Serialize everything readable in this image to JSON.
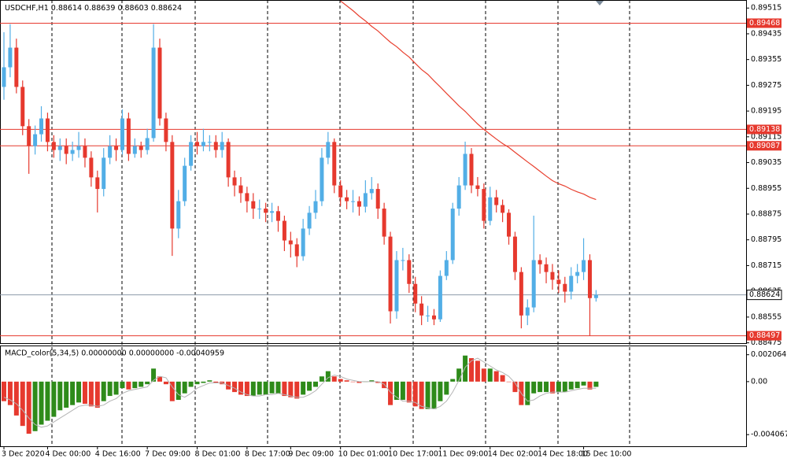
{
  "chart_data": [
    {
      "type": "candlestick",
      "title": "USDCHF,H1",
      "categories": [
        "3 Dec 2020",
        null,
        null,
        null,
        null,
        null,
        null,
        "4 Dec 00:00",
        null,
        null,
        null,
        null,
        null,
        null,
        null,
        "4 Dec 16:00",
        null,
        null,
        null,
        null,
        null,
        null,
        null,
        "7 Dec 09:00",
        null,
        null,
        null,
        null,
        null,
        null,
        null,
        "8 Dec 01:00",
        null,
        null,
        null,
        null,
        null,
        null,
        null,
        "8 Dec 17:00",
        null,
        null,
        null,
        null,
        null,
        null,
        "9 Dec 09:00",
        null,
        null,
        null,
        null,
        null,
        null,
        null,
        "10 Dec 01:00",
        null,
        null,
        null,
        null,
        null,
        null,
        null,
        "10 Dec 17:00",
        null,
        null,
        null,
        null,
        null,
        null,
        null,
        "11 Dec 09:00",
        null,
        null,
        null,
        null,
        null,
        null,
        null,
        "14 Dec 02:00",
        null,
        null,
        null,
        null,
        null,
        null,
        null,
        "14 Dec 18:00",
        null,
        null,
        null,
        null,
        null,
        null,
        "15 Dec 10:00",
        null,
        null
      ],
      "open": [
        0.8927,
        0.89331,
        0.89392,
        0.8927,
        0.89148,
        0.89086,
        0.89123,
        0.89172,
        0.89099,
        0.89074,
        0.89086,
        0.89062,
        0.89074,
        0.89086,
        0.8905,
        0.88989,
        0.88953,
        0.8905,
        0.89086,
        0.89074,
        0.89172,
        0.89062,
        0.89086,
        0.89074,
        0.89111,
        0.89392,
        0.89172,
        0.89099,
        0.8883,
        0.88915,
        0.89025,
        0.89099,
        0.89086,
        0.89099,
        0.89099,
        0.89074,
        0.89099,
        0.88989,
        0.88964,
        0.8894,
        0.88915,
        0.88892,
        0.88892,
        0.88879,
        0.88884,
        0.88854,
        0.88793,
        0.88781,
        0.88744,
        0.8883,
        0.88879,
        0.88915,
        0.8905,
        0.89099,
        0.88964,
        0.88927,
        0.88915,
        0.88915,
        0.88898,
        0.8894,
        0.88953,
        0.88892,
        0.88805,
        0.88573,
        0.88732,
        0.88732,
        0.88658,
        0.88597,
        0.8856,
        0.8856,
        0.88548,
        0.88683,
        0.88732,
        0.88892,
        0.88964,
        0.89062,
        0.88964,
        0.88953,
        0.88854,
        0.88927,
        0.88903,
        0.88879,
        0.88805,
        0.88695,
        0.8856,
        0.88585,
        0.88732,
        0.88719,
        0.88695,
        0.88671,
        0.88658,
        0.88634,
        0.88683,
        0.88695,
        0.88732,
        0.88614
      ],
      "high": [
        0.8944,
        0.89465,
        0.8942,
        0.8929,
        0.8917,
        0.8915,
        0.8921,
        0.8919,
        0.8912,
        0.8911,
        0.8911,
        0.891,
        0.8913,
        0.8911,
        0.8907,
        0.8901,
        0.8908,
        0.8912,
        0.8911,
        0.892,
        0.8919,
        0.8911,
        0.891,
        0.8914,
        0.89465,
        0.8942,
        0.8919,
        0.8912,
        0.8895,
        0.8905,
        0.8912,
        0.8913,
        0.8914,
        0.8912,
        0.8912,
        0.8913,
        0.8911,
        0.8901,
        0.8899,
        0.8896,
        0.8894,
        0.8892,
        0.8891,
        0.8891,
        0.889,
        0.8887,
        0.8882,
        0.888,
        0.8886,
        0.889,
        0.8895,
        0.8908,
        0.8913,
        0.8911,
        0.8898,
        0.8895,
        0.8895,
        0.8893,
        0.8898,
        0.8899,
        0.8897,
        0.8891,
        0.8882,
        0.8876,
        0.8877,
        0.8875,
        0.8868,
        0.8862,
        0.8859,
        0.8858,
        0.887,
        0.8876,
        0.8891,
        0.8899,
        0.891,
        0.8908,
        0.8899,
        0.8897,
        0.8896,
        0.8895,
        0.8892,
        0.8889,
        0.8882,
        0.8871,
        0.8861,
        0.8887,
        0.8875,
        0.8874,
        0.8872,
        0.887,
        0.8868,
        0.8871,
        0.8872,
        0.888,
        0.8875,
        0.88639
      ],
      "low": [
        0.8923,
        0.893,
        0.8925,
        0.8912,
        0.89,
        0.8906,
        0.891,
        0.8907,
        0.8905,
        0.8904,
        0.8903,
        0.8904,
        0.8905,
        0.8902,
        0.8896,
        0.8888,
        0.8893,
        0.8903,
        0.8904,
        0.8906,
        0.8904,
        0.8905,
        0.8905,
        0.8906,
        0.891,
        0.8915,
        0.8907,
        0.88745,
        0.888,
        0.889,
        0.8901,
        0.8906,
        0.8907,
        0.8907,
        0.8905,
        0.8905,
        0.8896,
        0.8893,
        0.8891,
        0.8888,
        0.8886,
        0.8886,
        0.8885,
        0.8885,
        0.8882,
        0.8876,
        0.8874,
        0.8871,
        0.8873,
        0.8881,
        0.8886,
        0.889,
        0.8903,
        0.8894,
        0.889,
        0.8889,
        0.8888,
        0.8887,
        0.8888,
        0.8892,
        0.8886,
        0.8878,
        0.88535,
        0.8855,
        0.887,
        0.8863,
        0.8857,
        0.8853,
        0.8854,
        0.8853,
        0.8854,
        0.8867,
        0.8872,
        0.8887,
        0.8895,
        0.8894,
        0.8893,
        0.8883,
        0.8884,
        0.8888,
        0.8885,
        0.8878,
        0.8867,
        0.8852,
        0.8853,
        0.8857,
        0.8869,
        0.8866,
        0.8864,
        0.8863,
        0.886,
        0.8861,
        0.8866,
        0.8867,
        0.88497,
        0.88603
      ],
      "close": [
        0.89331,
        0.89392,
        0.8927,
        0.89148,
        0.89086,
        0.89123,
        0.89172,
        0.89099,
        0.89074,
        0.89086,
        0.89062,
        0.89074,
        0.89086,
        0.8905,
        0.88989,
        0.88953,
        0.8905,
        0.89086,
        0.89074,
        0.89172,
        0.89062,
        0.89086,
        0.89074,
        0.89111,
        0.89392,
        0.89172,
        0.89099,
        0.8883,
        0.88915,
        0.89025,
        0.89099,
        0.89086,
        0.89099,
        0.89099,
        0.89074,
        0.89099,
        0.88989,
        0.88964,
        0.8894,
        0.88915,
        0.88892,
        0.88892,
        0.88879,
        0.88884,
        0.88854,
        0.88793,
        0.88781,
        0.88744,
        0.8883,
        0.88879,
        0.88915,
        0.8905,
        0.89099,
        0.88964,
        0.88927,
        0.88915,
        0.88915,
        0.88898,
        0.8894,
        0.88953,
        0.88892,
        0.88805,
        0.88573,
        0.88732,
        0.88732,
        0.88658,
        0.88597,
        0.8856,
        0.8856,
        0.88548,
        0.88683,
        0.88732,
        0.88892,
        0.88964,
        0.89062,
        0.88964,
        0.88953,
        0.88854,
        0.88927,
        0.88903,
        0.88879,
        0.88805,
        0.88695,
        0.8856,
        0.88585,
        0.88732,
        0.88719,
        0.88695,
        0.88671,
        0.88658,
        0.88634,
        0.88683,
        0.88695,
        0.88732,
        0.88614,
        0.88624
      ],
      "moving_average": {
        "color": "#e8402f",
        "values": [
          null,
          null,
          null,
          null,
          null,
          null,
          null,
          null,
          null,
          null,
          null,
          null,
          null,
          null,
          null,
          null,
          null,
          null,
          null,
          null,
          null,
          null,
          null,
          null,
          null,
          null,
          null,
          null,
          null,
          null,
          null,
          null,
          null,
          null,
          null,
          null,
          null,
          null,
          null,
          null,
          null,
          null,
          null,
          null,
          null,
          null,
          null,
          null,
          null,
          null,
          null,
          null,
          null,
          null,
          0.89537,
          0.89522,
          0.89507,
          0.8949,
          0.89475,
          0.89458,
          0.89444,
          0.89426,
          0.89409,
          0.89395,
          0.89378,
          0.89363,
          0.89343,
          0.89324,
          0.89309,
          0.89289,
          0.8927,
          0.8925,
          0.89231,
          0.89211,
          0.89194,
          0.89174,
          0.89155,
          0.89138,
          0.89123,
          0.89108,
          0.89094,
          0.89082,
          0.89067,
          0.89052,
          0.89037,
          0.89023,
          0.89008,
          0.88993,
          0.88979,
          0.88969,
          0.88962,
          0.88952,
          0.88944,
          0.88937,
          0.88927,
          0.8892
        ]
      },
      "up_color": "#52aee6",
      "down_color": "#e6392e",
      "ylim": [
        0.88474,
        0.8954
      ],
      "yticks": [
        0.89515,
        0.89435,
        0.89355,
        0.89275,
        0.89195,
        0.89115,
        0.89035,
        0.88955,
        0.88875,
        0.88795,
        0.88715,
        0.88635,
        0.88555,
        0.88475
      ],
      "levels": [
        0.89468,
        0.89138,
        0.89087,
        0.88497
      ],
      "level_color": "#e6392e",
      "bid": 0.88624
    },
    {
      "type": "bar",
      "title": "MACD_color(5,34,5) 0.00000000 0.00000000 -0.00040959",
      "values": [
        -0.0015,
        -0.0018,
        -0.0026,
        -0.0034,
        -0.004,
        -0.0038,
        -0.0033,
        -0.003,
        -0.0027,
        -0.0022,
        -0.002,
        -0.0018,
        -0.0016,
        -0.0017,
        -0.0019,
        -0.002,
        -0.0015,
        -0.0011,
        -0.001,
        -0.0005,
        -0.0006,
        -0.0005,
        -0.0004,
        -0.0002,
        0.001,
        0.0004,
        -0.0002,
        -0.0015,
        -0.0014,
        -0.0009,
        -0.0004,
        -0.0002,
        -0.0001,
        0.0001,
        -0.0001,
        -0.0002,
        -0.0006,
        -0.0008,
        -0.001,
        -0.0011,
        -0.0011,
        -0.001,
        -0.001,
        -0.0009,
        -0.0009,
        -0.0011,
        -0.0012,
        -0.0013,
        -0.001,
        -0.0007,
        -0.0004,
        0.0004,
        0.0008,
        0.0004,
        0.0002,
        0.0001,
        0,
        -0.0001,
        0,
        0.0001,
        -0.0001,
        -0.0005,
        -0.0018,
        -0.0014,
        -0.0014,
        -0.0016,
        -0.0019,
        -0.0021,
        -0.0021,
        -0.0021,
        -0.0015,
        -0.001,
        0.0002,
        0.001,
        0.002,
        0.0018,
        0.0016,
        0.001,
        0.001,
        0.0008,
        0.0005,
        0,
        -0.0008,
        -0.0018,
        -0.0018,
        -0.0009,
        -0.0008,
        -0.0008,
        -0.0009,
        -0.0008,
        -0.0008,
        -0.0006,
        -0.0005,
        -0.0003,
        -0.0006,
        -0.0004
      ],
      "signal": [
        -0.0012,
        -0.0014,
        -0.0017,
        -0.0022,
        -0.0028,
        -0.0033,
        -0.0035,
        -0.0034,
        -0.0031,
        -0.0028,
        -0.0025,
        -0.0022,
        -0.0019,
        -0.0018,
        -0.0018,
        -0.0019,
        -0.0018,
        -0.0015,
        -0.0013,
        -0.0009,
        -0.0007,
        -0.0006,
        -0.0005,
        -0.0004,
        0.0001,
        0.0004,
        0.0003,
        -0.0004,
        -0.001,
        -0.0012,
        -0.0009,
        -0.0005,
        -0.0003,
        -0.0001,
        -0.0001,
        -0.0001,
        -0.0003,
        -0.0005,
        -0.0008,
        -0.001,
        -0.0011,
        -0.0011,
        -0.001,
        -0.001,
        -0.0009,
        -0.001,
        -0.0011,
        -0.0012,
        -0.0012,
        -0.001,
        -0.0007,
        -0.0002,
        0.0003,
        0.0005,
        0.0004,
        0.0002,
        0.0001,
        0,
        0,
        0,
        0,
        -0.0002,
        -0.0008,
        -0.0012,
        -0.0015,
        -0.0015,
        -0.0016,
        -0.0019,
        -0.002,
        -0.0021,
        -0.0019,
        -0.0015,
        -0.0008,
        0.0001,
        0.0011,
        0.0016,
        0.0018,
        0.0015,
        0.0012,
        0.0009,
        0.0007,
        0.0004,
        -0.0001,
        -0.0009,
        -0.0015,
        -0.0014,
        -0.0011,
        -0.0009,
        -0.0008,
        -0.0008,
        -0.0008,
        -0.0007,
        -0.0006,
        -0.0005,
        -0.0005,
        -0.0005
      ],
      "up_color": "#2e8b1a",
      "down_color": "#e6392e",
      "signal_color": "#b4b4b4",
      "ylim": [
        -0.00496,
        0.00271
      ],
      "yticks": [
        {
          "value": 0.0020646,
          "label": "0.0020646"
        },
        {
          "value": 0,
          "label": "0.00"
        },
        {
          "value": -0.0040671,
          "label": "-0.0040671"
        }
      ]
    }
  ]
}
